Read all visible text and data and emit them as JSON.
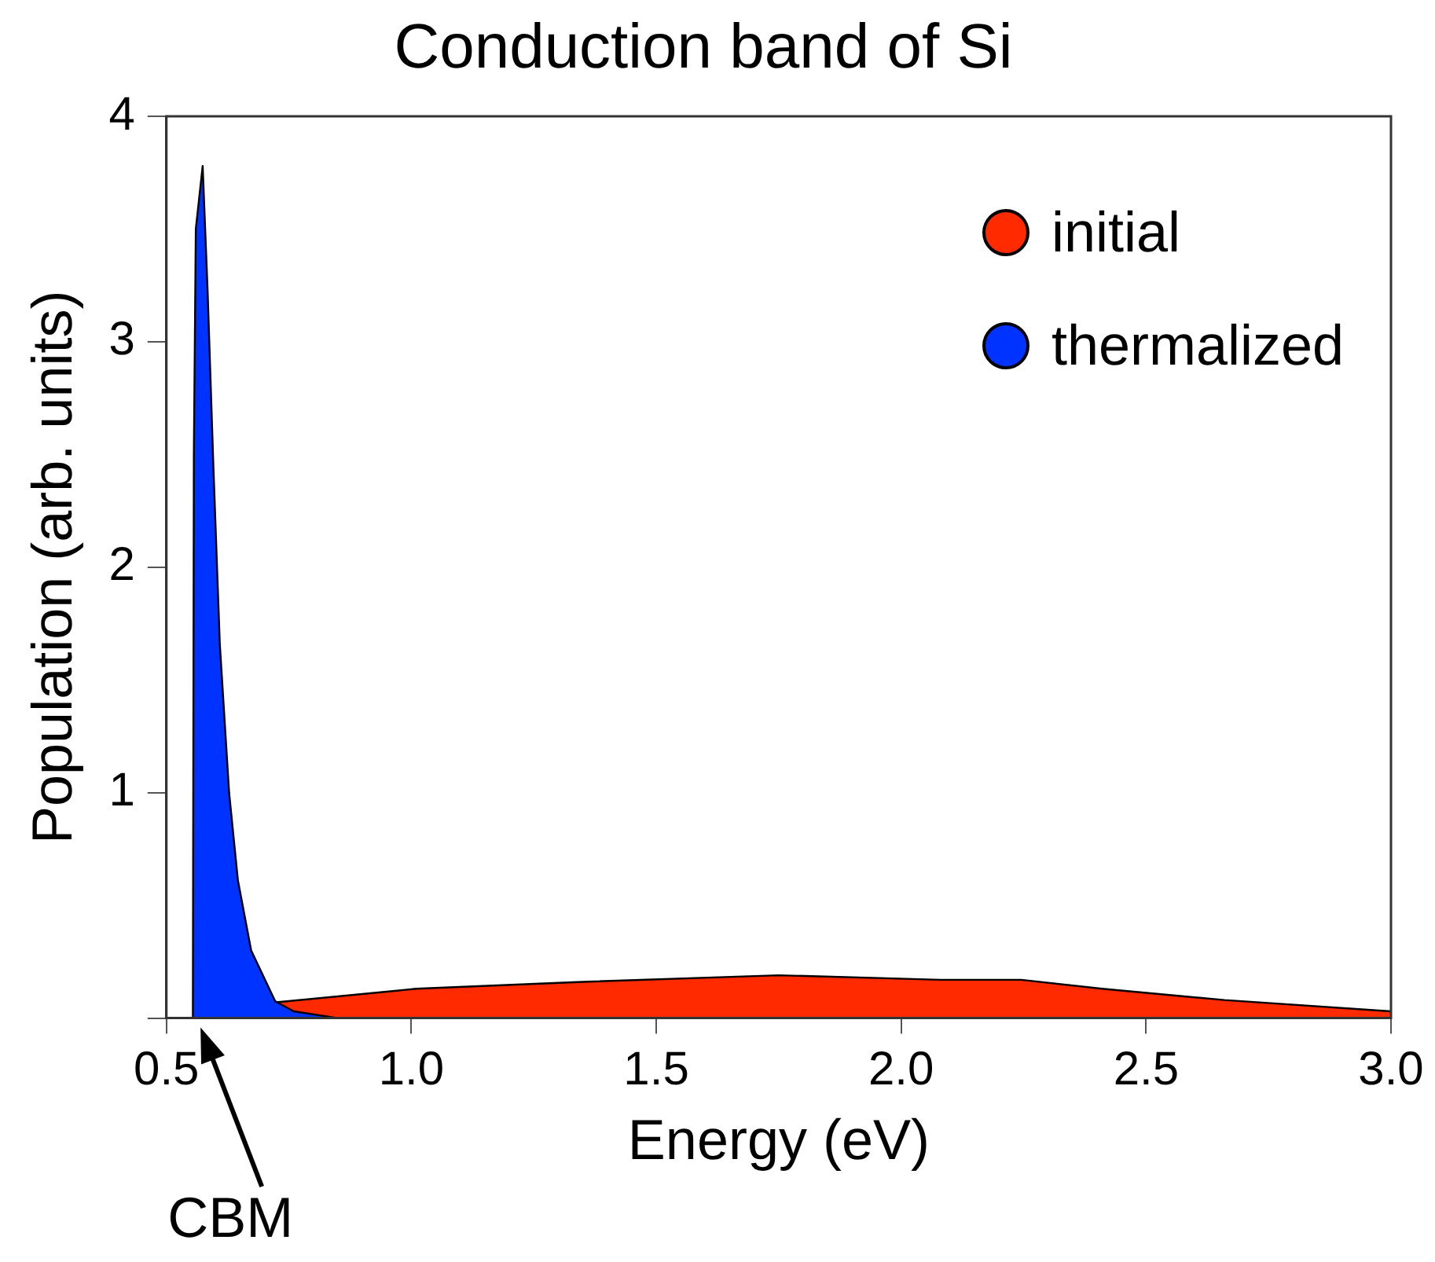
{
  "chart_data": {
    "type": "area",
    "title": "Conduction band of Si",
    "xlabel": "Energy (eV)",
    "ylabel": "Population (arb. units)",
    "xlim": [
      0.5,
      3.0
    ],
    "xticks": [
      {
        "value": 0.5,
        "label": "0.5"
      },
      {
        "value": 1.0,
        "label": "1.0"
      },
      {
        "value": 1.5,
        "label": "1.5"
      },
      {
        "value": 2.0,
        "label": "2.0"
      },
      {
        "value": 2.5,
        "label": "2.5"
      },
      {
        "value": 3.0,
        "label": "3.0"
      }
    ],
    "ylim": [
      0,
      4
    ],
    "yticks": [
      {
        "value": 0,
        "label": null
      },
      1,
      2,
      3,
      4
    ],
    "grid": false,
    "legend": "top right",
    "marker": "none",
    "annotations": [
      {
        "text": "CBM",
        "x": 0.56,
        "y": 0
      }
    ],
    "series": [
      {
        "name": "thermalized",
        "color": "#0033ff",
        "x": [
          0.554,
          0.556,
          0.56,
          0.574,
          0.584,
          0.596,
          0.609,
          0.628,
          0.646,
          0.673,
          0.722,
          0.76,
          0.85
        ],
        "values": [
          0,
          2.5,
          3.5,
          3.78,
          3.23,
          2.44,
          1.66,
          1.0,
          0.61,
          0.3,
          0.075,
          0.03,
          0
        ]
      },
      {
        "name": "initial",
        "color": "#ff2a00",
        "x": [
          0.554,
          0.724,
          1.01,
          1.34,
          1.75,
          2.08,
          2.245,
          2.41,
          2.66,
          3.0
        ],
        "values": [
          0,
          0.07,
          0.13,
          0.16,
          0.19,
          0.17,
          0.17,
          0.13,
          0.08,
          0.03
        ]
      }
    ]
  }
}
